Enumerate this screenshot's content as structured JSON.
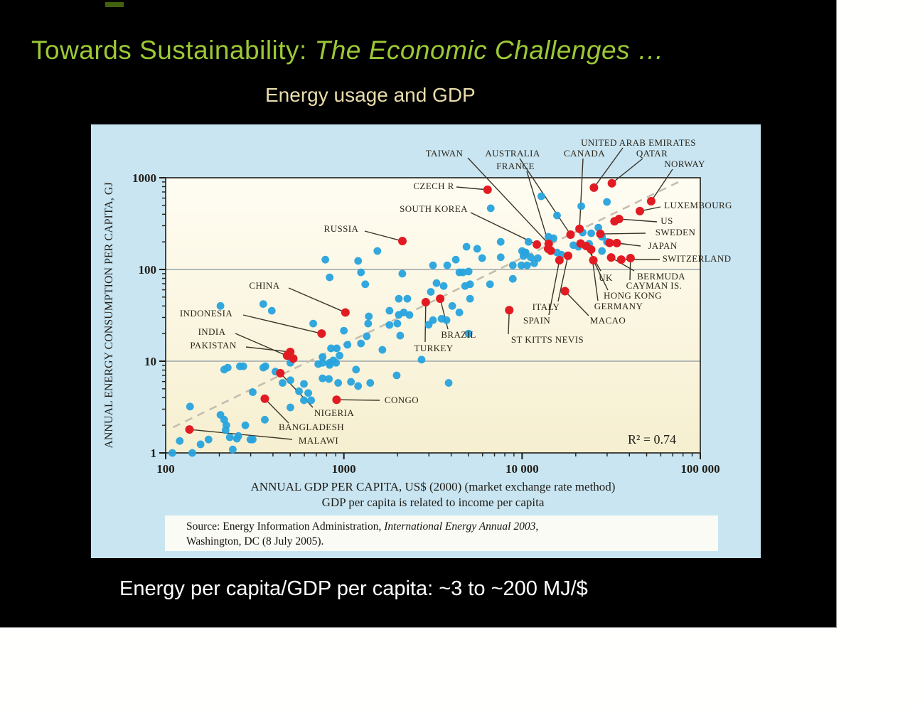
{
  "slide": {
    "title_main": "Towards Sustainability:",
    "title_emphasis": " The Economic Challenges …",
    "subtitle": "Energy usage and GDP",
    "caption": "Energy per capita/GDP per capita: ~3 to ~200 MJ/$",
    "colors": {
      "slide_bg": "#000000",
      "page_bg": "#fffffe",
      "title": "#9cc836",
      "subtitle": "#e9dcaa",
      "caption": "#ffffff"
    }
  },
  "chart_data": {
    "type": "scatter",
    "log_scale": true,
    "xlim": [
      100,
      100000
    ],
    "ylim": [
      1,
      1000
    ],
    "xlabel": "ANNUAL GDP PER CAPITA, US$ (2000) (market exchange rate method)",
    "xlabel2": "GDP per capita is related to income per capita",
    "ylabel": "ANNUAL ENERGY CONSUMPTION PER CAPITA, GJ",
    "x_ticks": [
      {
        "v": 100,
        "label": "100"
      },
      {
        "v": 1000,
        "label": "1000"
      },
      {
        "v": 10000,
        "label": "10 000"
      },
      {
        "v": 100000,
        "label": "100 000"
      }
    ],
    "y_ticks": [
      {
        "v": 1,
        "label": "1"
      },
      {
        "v": 10,
        "label": "10"
      },
      {
        "v": 100,
        "label": "100"
      },
      {
        "v": 1000,
        "label": "1000"
      }
    ],
    "gridlines_y": [
      10,
      100
    ],
    "r_squared_text": "R² = 0.74",
    "source_prefix": "Source: Energy Information Administration, ",
    "source_italic": "International Energy Annual 2003,",
    "source_line2": "Washington, DC (8 July 2005).",
    "colors": {
      "panel_bg": "#c9e5f2",
      "plot_top": "#fffdf3",
      "plot_bottom": "#f6efd0",
      "blue_point": "#27a3dd",
      "red_point": "#e21b23",
      "grid": "#9aa5a8",
      "trend": "#c4beb0",
      "axis": "#1f1d16",
      "label_text": "#2b2518",
      "source_bg": "#fbfbf6"
    },
    "trendline": {
      "x": [
        110,
        80000
      ],
      "y": [
        1.9,
        950
      ],
      "style": "dashed"
    },
    "labeled_points": [
      {
        "name": "MALAWI",
        "gdp": 136,
        "energy": 1.8,
        "tx": 320,
        "ty": 445,
        "lx": 283,
        "ly": 443
      },
      {
        "name": "BANGLADESH",
        "gdp": 360,
        "energy": 3.9,
        "tx": 310,
        "ty": 426,
        "lx": 278,
        "ly": 420
      },
      {
        "name": "NIGERIA",
        "gdp": 440,
        "energy": 7.4,
        "tx": 342,
        "ty": 406,
        "lx": 312,
        "ly": 398
      },
      {
        "name": "CONGO",
        "gdp": 910,
        "energy": 3.8,
        "tx": 437,
        "ty": 388,
        "lx": 406,
        "ly": 388
      },
      {
        "name": "PAKISTAN",
        "gdp": 500,
        "energy": 12.6,
        "tx": 172,
        "ty": 311,
        "lx": 218,
        "ly": 313
      },
      {
        "name": "INDIA",
        "gdp": 520,
        "energy": 10.7,
        "tx": 170,
        "ty": 292,
        "lx": 203,
        "ly": 294
      },
      {
        "name": "INDONESIA",
        "gdp": 750,
        "energy": 20,
        "tx": 162,
        "ty": 266,
        "lx": 214,
        "ly": 268
      },
      {
        "name": "CHINA",
        "gdp": 1020,
        "energy": 34,
        "tx": 244,
        "ty": 227,
        "lx": 278,
        "ly": 230
      },
      {
        "name": "RUSSIA",
        "gdp": 2130,
        "energy": 204,
        "tx": 352,
        "ty": 147,
        "lx": 385,
        "ly": 150
      },
      {
        "name": "TURKEY",
        "gdp": 2880,
        "energy": 44,
        "tx": 482,
        "ty": 315,
        "lx": 470,
        "ly": 306
      },
      {
        "name": "BRAZIL",
        "gdp": 3470,
        "energy": 48,
        "tx": 517,
        "ty": 296,
        "lx": 502,
        "ly": 288
      },
      {
        "name": "ST KITTS NEVIS",
        "gdp": 8470,
        "energy": 36,
        "tx": 642,
        "ty": 303,
        "lx": 587,
        "ly": 295
      },
      {
        "name": "SOUTH KOREA",
        "gdp": 12100,
        "energy": 187,
        "tx": 482,
        "ty": 119,
        "lx": 534,
        "ly": 124
      },
      {
        "name": "TAIWAN",
        "gdp": 14100,
        "energy": 190,
        "tx": 497,
        "ty": 41,
        "lx": 530,
        "ly": 47
      },
      {
        "name": "FRANCE",
        "gdp": 14500,
        "energy": 160,
        "tx": 597,
        "ty": 59,
        "lx": 613,
        "ly": 66
      },
      {
        "name": "SPAIN",
        "gdp": 16200,
        "energy": 126,
        "tx": 627,
        "ty": 276,
        "lx": 644,
        "ly": 268
      },
      {
        "name": "ITALY",
        "gdp": 18100,
        "energy": 141,
        "tx": 640,
        "ty": 257,
        "lx": 657,
        "ly": 249
      },
      {
        "name": "MACAO",
        "gdp": 17400,
        "energy": 58,
        "tx": 727,
        "ty": 276,
        "lx": 700,
        "ly": 269
      },
      {
        "name": "AUSTRALIA",
        "gdp": 18700,
        "energy": 240,
        "tx": 593,
        "ty": 41,
        "lx": 603,
        "ly": 48
      },
      {
        "name": "CANADA",
        "gdp": 21000,
        "energy": 277,
        "tx": 694,
        "ty": 41,
        "lx": 692,
        "ly": 48
      },
      {
        "name": "UK",
        "gdp": 22900,
        "energy": 180,
        "tx": 724,
        "ty": 216,
        "lx": 717,
        "ly": 206
      },
      {
        "name": "GERMANY",
        "gdp": 24400,
        "energy": 165,
        "tx": 742,
        "ty": 256,
        "lx": 713,
        "ly": 248
      },
      {
        "name": "HONG KONG",
        "gdp": 25100,
        "energy": 126,
        "tx": 762,
        "ty": 241,
        "lx": 727,
        "ly": 233
      },
      {
        "name": "SWEDEN",
        "gdp": 27500,
        "energy": 244,
        "tx": 822,
        "ty": 152,
        "lx": 780,
        "ly": 153
      },
      {
        "name": "BERMUDA",
        "gdp": 31600,
        "energy": 135,
        "tx": 802,
        "ty": 214,
        "lx": 764,
        "ly": 206
      },
      {
        "name": "JAPAN",
        "gdp": 34000,
        "energy": 194,
        "tx": 804,
        "ty": 171,
        "lx": 773,
        "ly": 171
      },
      {
        "name": "SWITZERLAND",
        "gdp": 36000,
        "energy": 128,
        "tx": 852,
        "ty": 189,
        "lx": 800,
        "ly": 190
      },
      {
        "name": "CAYMAN IS.",
        "gdp": 40600,
        "energy": 133,
        "tx": 792,
        "ty": 227,
        "lx": 758,
        "ly": 219
      },
      {
        "name": "US",
        "gdp": 35000,
        "energy": 355,
        "tx": 810,
        "ty": 136,
        "lx": 796,
        "ly": 137
      },
      {
        "name": "LUXEMBOURG",
        "gdp": 45800,
        "energy": 433,
        "tx": 854,
        "ty": 114,
        "lx": 801,
        "ly": 116
      },
      {
        "name": "NORWAY",
        "gdp": 53000,
        "energy": 555,
        "tx": 835,
        "ty": 56,
        "lx": 818,
        "ly": 63
      },
      {
        "name": "QATAR",
        "gdp": 31900,
        "energy": 870,
        "tx": 789,
        "ty": 41,
        "lx": 776,
        "ly": 48
      },
      {
        "name": "UNITED ARAB EMIRATES",
        "gdp": 25300,
        "energy": 780,
        "tx": 770,
        "ty": 26,
        "lx": 748,
        "ly": 33
      },
      {
        "name": "CZECH R",
        "gdp": 6400,
        "energy": 740,
        "tx": 482,
        "ty": 87,
        "lx": 514,
        "ly": 88
      }
    ],
    "extra_red_points": [
      [
        33000,
        335
      ],
      [
        31000,
        195
      ],
      [
        21300,
        192
      ],
      [
        14000,
        168
      ],
      [
        480,
        11.5
      ]
    ],
    "unlabeled_points": [
      [
        109,
        1.0
      ],
      [
        120,
        1.35
      ],
      [
        141,
        1.0
      ],
      [
        174,
        1.4
      ],
      [
        217,
        1.77
      ],
      [
        238,
        1.09
      ],
      [
        251,
        1.43
      ],
      [
        299,
        1.4
      ],
      [
        137,
        3.2
      ],
      [
        157,
        1.24
      ],
      [
        203,
        2.6
      ],
      [
        213,
        2.3
      ],
      [
        219,
        2.0
      ],
      [
        229,
        1.48
      ],
      [
        256,
        1.53
      ],
      [
        280,
        2.0
      ],
      [
        308,
        4.6
      ],
      [
        360,
        2.3
      ],
      [
        308,
        1.4
      ],
      [
        213,
        8.1
      ],
      [
        261,
        8.8
      ],
      [
        353,
        8.5
      ],
      [
        413,
        7.7
      ],
      [
        453,
        5.8
      ],
      [
        501,
        9.6
      ],
      [
        501,
        6.2
      ],
      [
        560,
        4.7
      ],
      [
        631,
        4.5
      ],
      [
        597,
        3.75
      ],
      [
        655,
        3.75
      ],
      [
        501,
        3.13
      ],
      [
        597,
        5.65
      ],
      [
        718,
        9.3
      ],
      [
        759,
        9.6
      ],
      [
        832,
        9.1
      ],
      [
        871,
        10.2
      ],
      [
        759,
        6.5
      ],
      [
        824,
        6.4
      ],
      [
        929,
        5.8
      ],
      [
        1096,
        5.95
      ],
      [
        1202,
        5.36
      ],
      [
        1406,
        5.8
      ],
      [
        1170,
        8.1
      ],
      [
        946,
        11.5
      ],
      [
        3873,
        5.8
      ],
      [
        2729,
        10.4
      ],
      [
        1978,
        7.0
      ],
      [
        203,
        40
      ],
      [
        353,
        42
      ],
      [
        394,
        35.5
      ],
      [
        223,
        8.5
      ],
      [
        273,
        8.8
      ],
      [
        363,
        8.8
      ],
      [
        673,
        25.7
      ],
      [
        1380,
        30.8
      ],
      [
        1368,
        25.7
      ],
      [
        1000,
        21.5
      ],
      [
        1343,
        18.7
      ],
      [
        1803,
        24.8
      ],
      [
        1995,
        25.7
      ],
      [
        1803,
        35.5
      ],
      [
        2333,
        31.9
      ],
      [
        2070,
        19
      ],
      [
        1047,
        15.1
      ],
      [
        1247,
        15.6
      ],
      [
        847,
        13.8
      ],
      [
        912,
        13.8
      ],
      [
        1645,
        13.3
      ],
      [
        759,
        11.1
      ],
      [
        832,
        9.6
      ],
      [
        904,
        9.6
      ],
      [
        4875,
        177
      ],
      [
        5598,
        168
      ],
      [
        4246,
        128
      ],
      [
        3802,
        111
      ],
      [
        3162,
        111
      ],
      [
        5970,
        133
      ],
      [
        7586,
        200
      ],
      [
        7586,
        136
      ],
      [
        10000,
        159
      ],
      [
        10666,
        111
      ],
      [
        8872,
        111
      ],
      [
        4656,
        93
      ],
      [
        5012,
        95
      ],
      [
        4446,
        93
      ],
      [
        3311,
        71
      ],
      [
        3631,
        66
      ],
      [
        3076,
        57
      ],
      [
        2270,
        48
      ],
      [
        2033,
        48
      ],
      [
        2168,
        34
      ],
      [
        2033,
        32
      ],
      [
        4786,
        66
      ],
      [
        5105,
        69
      ],
      [
        6607,
        69
      ],
      [
        5105,
        48
      ],
      [
        4055,
        40
      ],
      [
        4446,
        34
      ],
      [
        3162,
        28
      ],
      [
        3767,
        28
      ],
      [
        2992,
        25
      ],
      [
        3532,
        29
      ],
      [
        8872,
        79
      ],
      [
        9908,
        111
      ],
      [
        10376,
        153
      ],
      [
        11695,
        117
      ],
      [
        787,
        128
      ],
      [
        832,
        82
      ],
      [
        1202,
        124
      ],
      [
        1247,
        93
      ],
      [
        1318,
        69
      ],
      [
        1542,
        159
      ],
      [
        2128,
        90
      ],
      [
        5012,
        20
      ],
      [
        6668,
        465
      ],
      [
        12823,
        628
      ],
      [
        21478,
        490
      ],
      [
        29923,
        545
      ],
      [
        15704,
        388
      ],
      [
        21878,
        253
      ],
      [
        14060,
        227
      ],
      [
        14997,
        219
      ],
      [
        10864,
        200
      ],
      [
        10471,
        153
      ],
      [
        10186,
        140
      ],
      [
        11169,
        136
      ],
      [
        12246,
        133
      ],
      [
        15704,
        153
      ],
      [
        16596,
        145
      ],
      [
        19409,
        184
      ],
      [
        20701,
        177
      ],
      [
        28054,
        159
      ],
      [
        29923,
        200
      ],
      [
        23768,
        190
      ],
      [
        26792,
        286
      ],
      [
        28054,
        227
      ],
      [
        24434,
        248
      ]
    ]
  }
}
